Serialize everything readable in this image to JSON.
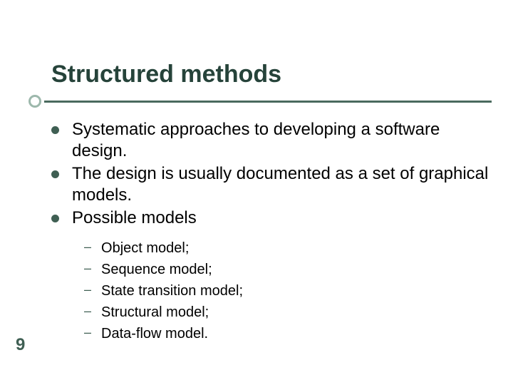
{
  "title": "Structured methods",
  "colors": {
    "title_color": "#26433a",
    "rule_color": "#4a6a5e",
    "dot_border": "#9db8ac",
    "bullet_color": "#3f5f53",
    "text_color": "#000000",
    "background": "#ffffff"
  },
  "main_items": [
    "Systematic approaches to developing a software design.",
    "The design is usually documented as a set of graphical models.",
    "Possible models"
  ],
  "sub_items": [
    "Object model;",
    "Sequence model;",
    "State transition model;",
    "Structural model;",
    "Data-flow model."
  ],
  "page_number": "9",
  "typography": {
    "title_fontsize": 34,
    "main_fontsize": 24,
    "sub_fontsize": 20,
    "pagenum_fontsize": 24
  }
}
